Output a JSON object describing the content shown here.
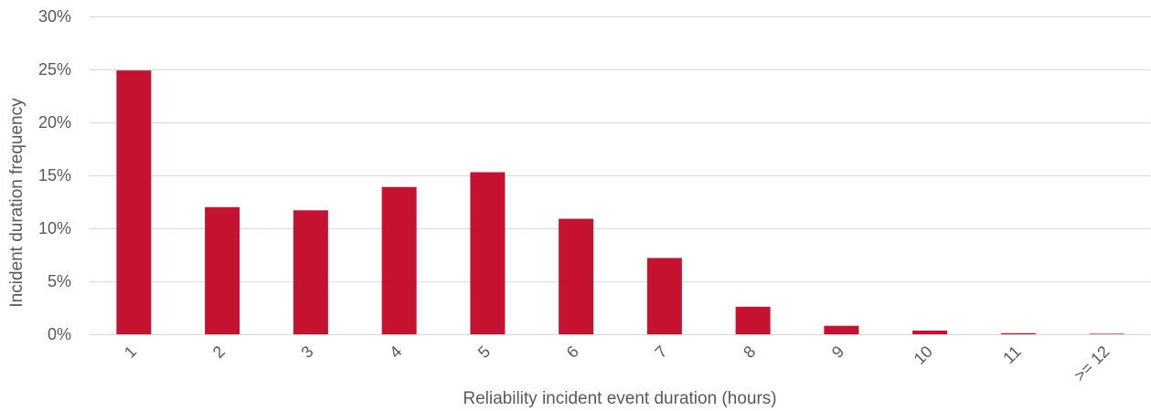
{
  "chart_data": {
    "type": "bar",
    "title": "",
    "xlabel": "Reliability incident event duration (hours)",
    "ylabel": "Incident duration frequency",
    "categories": [
      "1",
      "2",
      "3",
      "4",
      "5",
      "6",
      "7",
      "8",
      "9",
      "10",
      "11",
      ">= 12"
    ],
    "values": [
      24.9,
      12.0,
      11.7,
      13.9,
      15.3,
      10.9,
      7.2,
      2.6,
      0.8,
      0.35,
      0.1,
      0.05
    ],
    "ylim": [
      0,
      30
    ],
    "yticks": [
      0,
      5,
      10,
      15,
      20,
      25,
      30
    ],
    "ytick_labels": [
      "0%",
      "5%",
      "10%",
      "15%",
      "20%",
      "25%",
      "30%"
    ],
    "grid": true,
    "legend": "none",
    "bar_color": "#C41230",
    "text_color": "#595959",
    "grid_color": "#D9D9D9"
  }
}
